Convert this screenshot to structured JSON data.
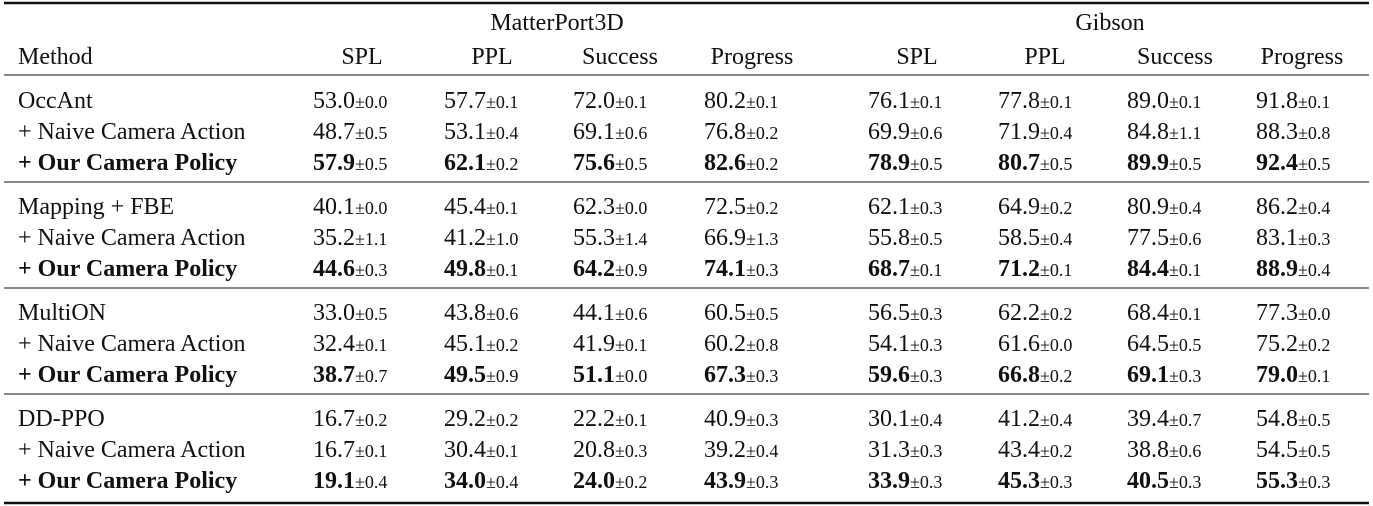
{
  "header": {
    "groups": [
      "MatterPort3D",
      "Gibson"
    ],
    "columns": [
      "Method",
      "SPL",
      "PPL",
      "Success",
      "Progress",
      "SPL",
      "PPL",
      "Success",
      "Progress"
    ]
  },
  "table": {
    "sections": [
      {
        "rows": [
          {
            "method": "OccAnt",
            "cells": [
              [
                "53.0",
                "±0.0"
              ],
              [
                "57.7",
                "±0.1"
              ],
              [
                "72.0",
                "±0.1"
              ],
              [
                "80.2",
                "±0.1"
              ],
              [
                "76.1",
                "±0.1"
              ],
              [
                "77.8",
                "±0.1"
              ],
              [
                "89.0",
                "±0.1"
              ],
              [
                "91.8",
                "±0.1"
              ]
            ]
          },
          {
            "method": "+ Naive Camera Action",
            "cells": [
              [
                "48.7",
                "±0.5"
              ],
              [
                "53.1",
                "±0.4"
              ],
              [
                "69.1",
                "±0.6"
              ],
              [
                "76.8",
                "±0.2"
              ],
              [
                "69.9",
                "±0.6"
              ],
              [
                "71.9",
                "±0.4"
              ],
              [
                "84.8",
                "±1.1"
              ],
              [
                "88.3",
                "±0.8"
              ]
            ]
          },
          {
            "method": "+ Our Camera Policy",
            "cells": [
              [
                "57.9",
                "±0.5"
              ],
              [
                "62.1",
                "±0.2"
              ],
              [
                "75.6",
                "±0.5"
              ],
              [
                "82.6",
                "±0.2"
              ],
              [
                "78.9",
                "±0.5"
              ],
              [
                "80.7",
                "±0.5"
              ],
              [
                "89.9",
                "±0.5"
              ],
              [
                "92.4",
                "±0.5"
              ]
            ]
          }
        ]
      },
      {
        "rows": [
          {
            "method": "Mapping + FBE",
            "cells": [
              [
                "40.1",
                "±0.0"
              ],
              [
                "45.4",
                "±0.1"
              ],
              [
                "62.3",
                "±0.0"
              ],
              [
                "72.5",
                "±0.2"
              ],
              [
                "62.1",
                "±0.3"
              ],
              [
                "64.9",
                "±0.2"
              ],
              [
                "80.9",
                "±0.4"
              ],
              [
                "86.2",
                "±0.4"
              ]
            ]
          },
          {
            "method": "+ Naive Camera Action",
            "cells": [
              [
                "35.2",
                "±1.1"
              ],
              [
                "41.2",
                "±1.0"
              ],
              [
                "55.3",
                "±1.4"
              ],
              [
                "66.9",
                "±1.3"
              ],
              [
                "55.8",
                "±0.5"
              ],
              [
                "58.5",
                "±0.4"
              ],
              [
                "77.5",
                "±0.6"
              ],
              [
                "83.1",
                "±0.3"
              ]
            ]
          },
          {
            "method": "+ Our Camera Policy",
            "cells": [
              [
                "44.6",
                "±0.3"
              ],
              [
                "49.8",
                "±0.1"
              ],
              [
                "64.2",
                "±0.9"
              ],
              [
                "74.1",
                "±0.3"
              ],
              [
                "68.7",
                "±0.1"
              ],
              [
                "71.2",
                "±0.1"
              ],
              [
                "84.4",
                "±0.1"
              ],
              [
                "88.9",
                "±0.4"
              ]
            ]
          }
        ]
      },
      {
        "rows": [
          {
            "method": "MultiON",
            "cells": [
              [
                "33.0",
                "±0.5"
              ],
              [
                "43.8",
                "±0.6"
              ],
              [
                "44.1",
                "±0.6"
              ],
              [
                "60.5",
                "±0.5"
              ],
              [
                "56.5",
                "±0.3"
              ],
              [
                "62.2",
                "±0.2"
              ],
              [
                "68.4",
                "±0.1"
              ],
              [
                "77.3",
                "±0.0"
              ]
            ]
          },
          {
            "method": "+ Naive Camera Action",
            "cells": [
              [
                "32.4",
                "±0.1"
              ],
              [
                "45.1",
                "±0.2"
              ],
              [
                "41.9",
                "±0.1"
              ],
              [
                "60.2",
                "±0.8"
              ],
              [
                "54.1",
                "±0.3"
              ],
              [
                "61.6",
                "±0.0"
              ],
              [
                "64.5",
                "±0.5"
              ],
              [
                "75.2",
                "±0.2"
              ]
            ]
          },
          {
            "method": "+ Our Camera Policy",
            "cells": [
              [
                "38.7",
                "±0.7"
              ],
              [
                "49.5",
                "±0.9"
              ],
              [
                "51.1",
                "±0.0"
              ],
              [
                "67.3",
                "±0.3"
              ],
              [
                "59.6",
                "±0.3"
              ],
              [
                "66.8",
                "±0.2"
              ],
              [
                "69.1",
                "±0.3"
              ],
              [
                "79.0",
                "±0.1"
              ]
            ]
          }
        ]
      },
      {
        "rows": [
          {
            "method": "DD-PPO",
            "cells": [
              [
                "16.7",
                "±0.2"
              ],
              [
                "29.2",
                "±0.2"
              ],
              [
                "22.2",
                "±0.1"
              ],
              [
                "40.9",
                "±0.3"
              ],
              [
                "30.1",
                "±0.4"
              ],
              [
                "41.2",
                "±0.4"
              ],
              [
                "39.4",
                "±0.7"
              ],
              [
                "54.8",
                "±0.5"
              ]
            ]
          },
          {
            "method": "+ Naive Camera Action",
            "cells": [
              [
                "16.7",
                "±0.1"
              ],
              [
                "30.4",
                "±0.1"
              ],
              [
                "20.8",
                "±0.3"
              ],
              [
                "39.2",
                "±0.4"
              ],
              [
                "31.3",
                "±0.3"
              ],
              [
                "43.4",
                "±0.2"
              ],
              [
                "38.8",
                "±0.6"
              ],
              [
                "54.5",
                "±0.5"
              ]
            ]
          },
          {
            "method": "+ Our Camera Policy",
            "cells": [
              [
                "19.1",
                "±0.4"
              ],
              [
                "34.0",
                "±0.4"
              ],
              [
                "24.0",
                "±0.2"
              ],
              [
                "43.9",
                "±0.3"
              ],
              [
                "33.9",
                "±0.3"
              ],
              [
                "45.3",
                "±0.3"
              ],
              [
                "40.5",
                "±0.3"
              ],
              [
                "55.3",
                "±0.3"
              ]
            ]
          }
        ]
      }
    ]
  }
}
